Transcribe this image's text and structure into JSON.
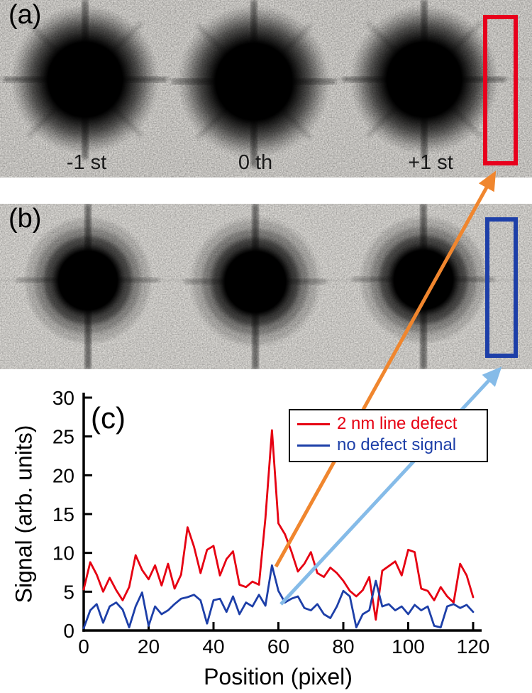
{
  "figure": {
    "panels": {
      "a": {
        "label": "(a)"
      },
      "b": {
        "label": "(b)"
      },
      "c": {
        "label": "(c)"
      }
    },
    "order_labels": [
      "-1 st",
      "0 th",
      "+1 st"
    ],
    "colors": {
      "red_box": "#e8001c",
      "blue_box": "#1d3fa8",
      "orange_arrow": "#f0862e",
      "light_blue_arrow": "#85bbe8"
    }
  },
  "chart_data": {
    "type": "line",
    "title": "",
    "xlabel": "Position (pixel)",
    "ylabel": "Signal (arb. units)",
    "xlim": [
      0,
      120
    ],
    "ylim": [
      0,
      30
    ],
    "xticks": [
      0,
      20,
      40,
      60,
      80,
      100,
      120
    ],
    "yticks": [
      0,
      5,
      10,
      15,
      20,
      25,
      30
    ],
    "grid": false,
    "legend_position": "top-right",
    "x": [
      0,
      2,
      4,
      6,
      8,
      10,
      12,
      14,
      16,
      18,
      20,
      22,
      24,
      26,
      28,
      30,
      32,
      34,
      36,
      38,
      40,
      42,
      44,
      46,
      48,
      50,
      52,
      54,
      56,
      58,
      60,
      62,
      64,
      66,
      68,
      70,
      72,
      74,
      76,
      78,
      80,
      82,
      84,
      86,
      88,
      90,
      92,
      94,
      96,
      98,
      100,
      102,
      104,
      106,
      108,
      110,
      112,
      114,
      116,
      118,
      120
    ],
    "series": [
      {
        "name": "2 nm line defect",
        "color": "#e60012",
        "values": [
          5.3,
          8.8,
          7.2,
          5.0,
          6.8,
          5.2,
          3.9,
          5.6,
          9.7,
          7.8,
          6.6,
          8.4,
          5.8,
          8.6,
          5.4,
          7.2,
          13.3,
          10.8,
          7.4,
          10.4,
          10.9,
          7.1,
          9.2,
          10.2,
          5.9,
          5.6,
          6.3,
          5.9,
          14.5,
          25.8,
          13.8,
          12.4,
          10.2,
          7.6,
          8.6,
          10.1,
          7.4,
          6.9,
          8.1,
          7.4,
          6.4,
          5.1,
          4.4,
          5.2,
          6.9,
          1.4,
          7.7,
          8.3,
          8.9,
          7.1,
          10.4,
          10.1,
          5.4,
          5.1,
          3.9,
          5.6,
          4.4,
          3.6,
          8.6,
          7.1,
          4.3
        ]
      },
      {
        "name": "no defect signal",
        "color": "#1d3fa8",
        "values": [
          0.3,
          2.6,
          3.4,
          1.0,
          3.1,
          3.6,
          2.7,
          0.4,
          3.1,
          4.9,
          0.6,
          3.1,
          2.1,
          2.6,
          3.4,
          4.1,
          4.3,
          4.6,
          3.9,
          0.9,
          3.9,
          4.1,
          2.4,
          4.4,
          2.1,
          3.6,
          3.1,
          4.6,
          3.2,
          8.4,
          5.1,
          3.6,
          4.1,
          4.4,
          2.9,
          2.6,
          3.4,
          2.1,
          1.6,
          3.1,
          5.1,
          4.4,
          0.4,
          2.1,
          2.6,
          6.4,
          3.1,
          3.4,
          2.6,
          3.1,
          2.1,
          3.3,
          2.6,
          3.1,
          0.6,
          0.4,
          3.1,
          3.4,
          2.9,
          3.3,
          2.4
        ]
      }
    ]
  }
}
